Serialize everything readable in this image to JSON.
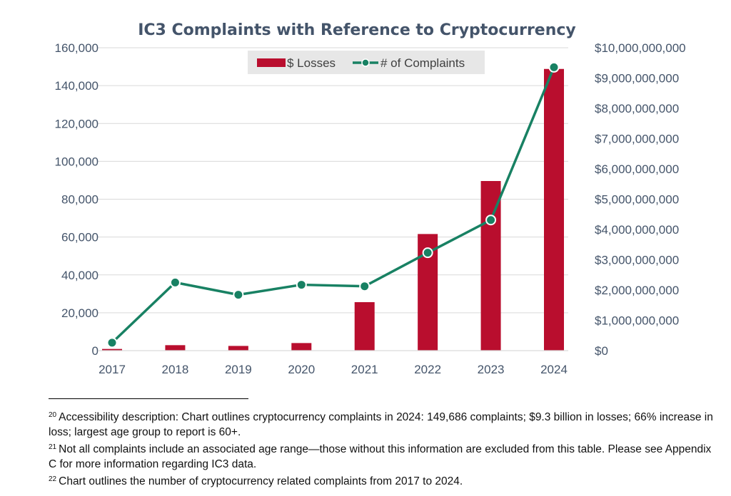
{
  "chart_data": {
    "type": "bar+line",
    "title": "IC3 Complaints with Reference to Cryptocurrency",
    "categories": [
      "2017",
      "2018",
      "2019",
      "2020",
      "2021",
      "2022",
      "2023",
      "2024"
    ],
    "series": [
      {
        "name": "$ Losses",
        "type": "bar",
        "axis": "right",
        "color": "#b90e2e",
        "values": [
          55000000,
          180000000,
          155000000,
          250000000,
          1600000000,
          3850000000,
          5600000000,
          9300000000
        ]
      },
      {
        "name": "# of Complaints",
        "type": "line",
        "axis": "left",
        "color": "#188163",
        "values": [
          4200,
          36000,
          29500,
          34800,
          34000,
          51700,
          69000,
          149686
        ]
      }
    ],
    "y_left": {
      "min": 0,
      "max": 160000,
      "ticks": [
        "0",
        "20,000",
        "40,000",
        "60,000",
        "80,000",
        "100,000",
        "120,000",
        "140,000",
        "160,000"
      ]
    },
    "y_right": {
      "min": 0,
      "max": 10000000000,
      "ticks": [
        "$0",
        "$1,000,000,000",
        "$2,000,000,000",
        "$3,000,000,000",
        "$4,000,000,000",
        "$5,000,000,000",
        "$6,000,000,000",
        "$7,000,000,000",
        "$8,000,000,000",
        "$9,000,000,000",
        "$10,000,000,000"
      ]
    },
    "grid": true,
    "legend": "top"
  },
  "footnotes": [
    {
      "num": "20",
      "text": "Accessibility description: Chart outlines cryptocurrency complaints in 2024: 149,686 complaints; $9.3 billion in losses; 66% increase in loss; largest age group to report is 60+."
    },
    {
      "num": "21",
      "text": "Not all complaints include an associated age range—those without this information are excluded from this table. Please see Appendix C for more information regarding IC3 data."
    },
    {
      "num": "22",
      "text": "Chart outlines the number of cryptocurrency related complaints from 2017 to 2024."
    }
  ]
}
